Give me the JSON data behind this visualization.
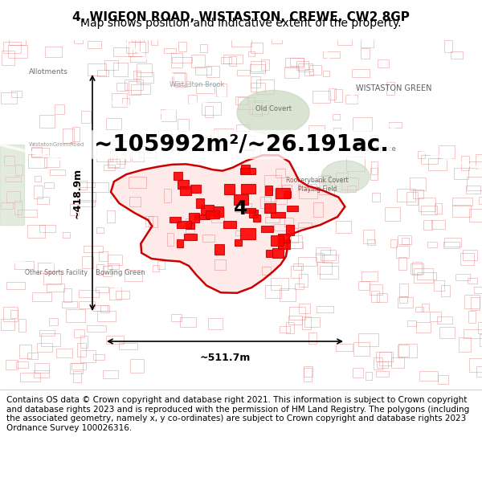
{
  "title_line1": "4, WIGEON ROAD, WISTASTON, CREWE, CW2 8GP",
  "title_line2": "Map shows position and indicative extent of the property.",
  "area_text": "~105992m²/~26.191ac.",
  "width_label": "~511.7m",
  "height_label": "~418.9m",
  "label_4": "4",
  "footer": "Contains OS data © Crown copyright and database right 2021. This information is subject to Crown copyright and database rights 2023 and is reproduced with the permission of HM Land Registry. The polygons (including the associated geometry, namely x, y co-ordinates) are subject to Crown copyright and database rights 2023 Ordnance Survey 100026316.",
  "map_bg": "#f5f0ec",
  "map_border": "#cccccc",
  "highlight_color": "#cc0000",
  "highlight_fill": "#ff000022",
  "green_fill": "#c8d8c0",
  "title_fontsize": 11,
  "subtitle_fontsize": 10,
  "area_fontsize": 22,
  "footer_fontsize": 7.5,
  "fig_width": 6.0,
  "fig_height": 6.25,
  "dpi": 100
}
